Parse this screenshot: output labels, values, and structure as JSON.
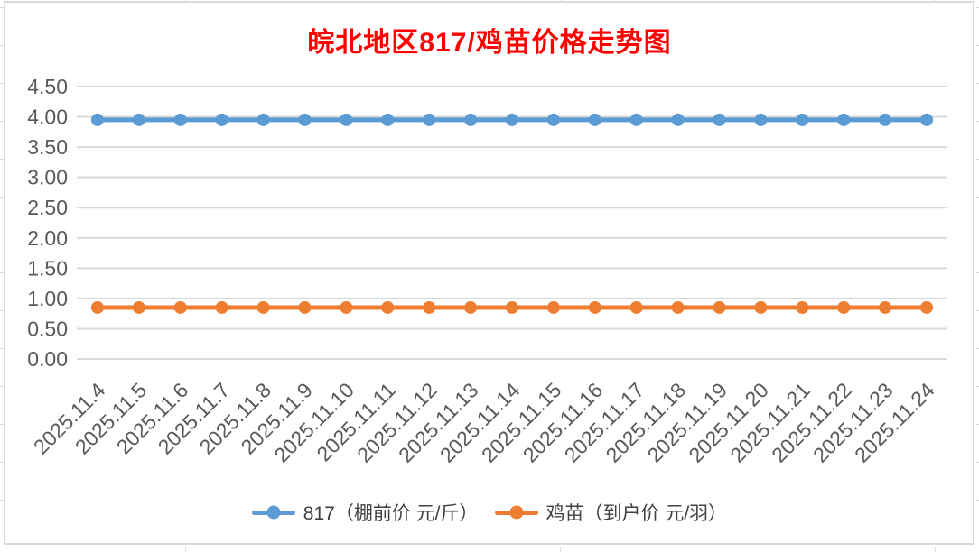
{
  "chart_data": {
    "type": "line",
    "title": "皖北地区817/鸡苗价格走势图",
    "title_color": "#FF0000",
    "categories": [
      "2025.11.4",
      "2025.11.5",
      "2025.11.6",
      "2025.11.7",
      "2025.11.8",
      "2025.11.9",
      "2025.11.10",
      "2025.11.11",
      "2025.11.12",
      "2025.11.13",
      "2025.11.14",
      "2025.11.15",
      "2025.11.16",
      "2025.11.17",
      "2025.11.18",
      "2025.11.19",
      "2025.11.20",
      "2025.11.21",
      "2025.11.22",
      "2025.11.23",
      "2025.11.24"
    ],
    "series": [
      {
        "name": "817（棚前价 元/斤）",
        "color": "#5B9BD5",
        "values": [
          3.95,
          3.95,
          3.95,
          3.95,
          3.95,
          3.95,
          3.95,
          3.95,
          3.95,
          3.95,
          3.95,
          3.95,
          3.95,
          3.95,
          3.95,
          3.95,
          3.95,
          3.95,
          3.95,
          3.95,
          3.95
        ]
      },
      {
        "name": "鸡苗（到户价 元/羽）",
        "color": "#ED7D31",
        "values": [
          0.85,
          0.85,
          0.85,
          0.85,
          0.85,
          0.85,
          0.85,
          0.85,
          0.85,
          0.85,
          0.85,
          0.85,
          0.85,
          0.85,
          0.85,
          0.85,
          0.85,
          0.85,
          0.85,
          0.85,
          0.85
        ]
      }
    ],
    "xlabel": "",
    "ylabel": "",
    "ylim": [
      0,
      4.5
    ],
    "y_step": 0.5,
    "y_tick_labels": [
      "0.00",
      "0.50",
      "1.00",
      "1.50",
      "2.00",
      "2.50",
      "3.00",
      "3.50",
      "4.00",
      "4.50"
    ],
    "grid": true,
    "legend_position": "bottom",
    "axis_label_color": "#595959",
    "gridline_color": "#D9D9D9"
  }
}
